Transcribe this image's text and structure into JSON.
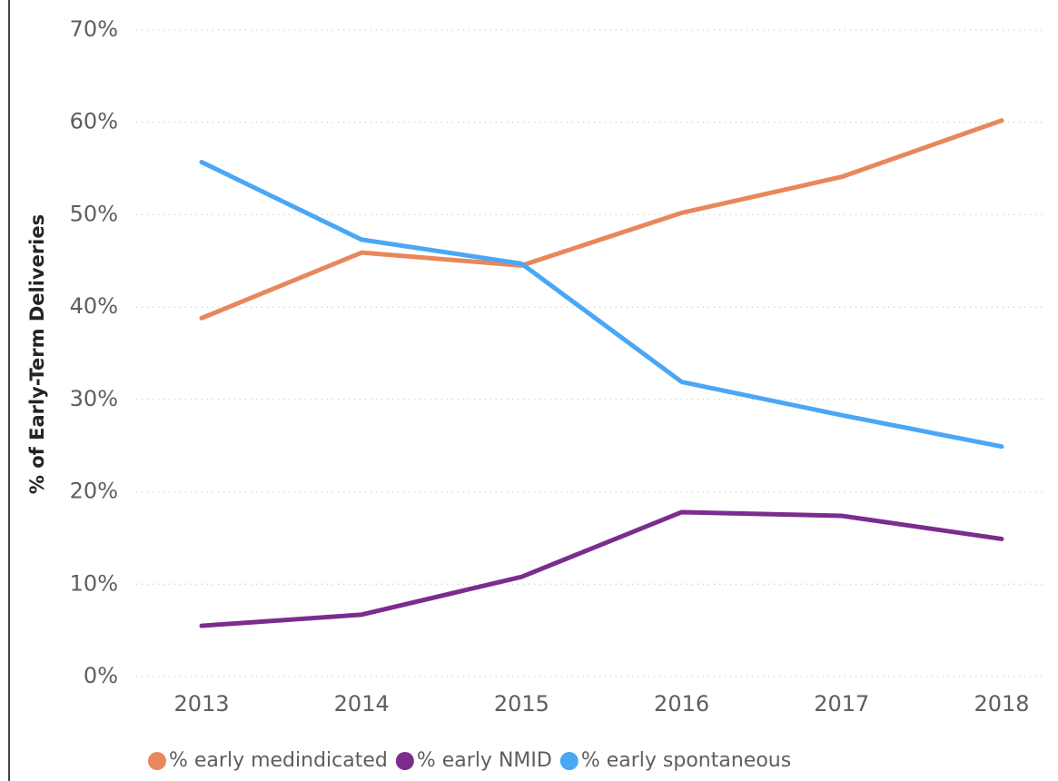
{
  "chart_data": {
    "type": "line",
    "y_label": "% of Early-Term Deliveries",
    "categories": [
      "2013",
      "2014",
      "2015",
      "2016",
      "2017",
      "2018"
    ],
    "series": [
      {
        "name": "% early medindicated",
        "color": "#e8875c",
        "values": [
          38.8,
          45.9,
          44.5,
          50.2,
          54.1,
          60.2
        ]
      },
      {
        "name": "% early NMID",
        "color": "#7b2d8e",
        "values": [
          5.5,
          6.7,
          10.8,
          17.8,
          17.4,
          14.9
        ]
      },
      {
        "name": "% early spontaneous",
        "color": "#4aa7f5",
        "values": [
          55.7,
          47.3,
          44.7,
          31.9,
          28.3,
          24.9
        ]
      }
    ],
    "ylim": [
      0,
      70
    ],
    "yticks": [
      {
        "value": 0,
        "label": "0%"
      },
      {
        "value": 10,
        "label": "10%"
      },
      {
        "value": 20,
        "label": "20%"
      },
      {
        "value": 30,
        "label": "30%"
      },
      {
        "value": 40,
        "label": "40%"
      },
      {
        "value": 50,
        "label": "50%"
      },
      {
        "value": 60,
        "label": "60%"
      },
      {
        "value": 70,
        "label": "70%"
      }
    ],
    "grid": true
  }
}
